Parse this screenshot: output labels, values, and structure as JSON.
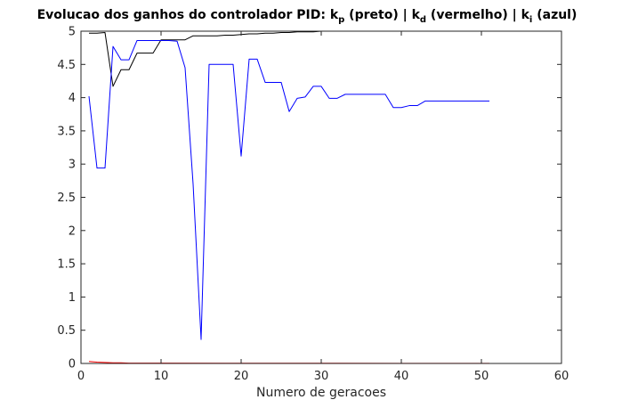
{
  "chart_data": {
    "type": "line",
    "title": {
      "prefix": "Evolucao dos ganhos do controlador PID: k",
      "kp_sub": "p",
      "kp_text": " (preto) | k",
      "kd_sub": "d",
      "kd_text": " (vermelho) | k",
      "ki_sub": "i",
      "ki_text": " (azul)"
    },
    "xlabel": "Numero de geracoes",
    "ylabel": "",
    "xlim": [
      0,
      60
    ],
    "ylim": [
      0,
      5
    ],
    "xticks": [
      0,
      10,
      20,
      30,
      40,
      50,
      60
    ],
    "yticks": [
      0,
      0.5,
      1,
      1.5,
      2,
      2.5,
      3,
      3.5,
      4,
      4.5,
      5
    ],
    "xtick_labels": [
      "0",
      "10",
      "20",
      "30",
      "40",
      "50",
      "60"
    ],
    "ytick_labels": [
      "0",
      "0.5",
      "1",
      "1.5",
      "2",
      "2.5",
      "3",
      "3.5",
      "4",
      "4.5",
      "5"
    ],
    "grid": false,
    "legend": "none",
    "series": [
      {
        "key": "kp",
        "color": "#000000",
        "points": [
          [
            1,
            4.97
          ],
          [
            2,
            4.97
          ],
          [
            3,
            4.98
          ],
          [
            4,
            4.17
          ],
          [
            5,
            4.42
          ],
          [
            6,
            4.42
          ],
          [
            7,
            4.67
          ],
          [
            8,
            4.67
          ],
          [
            9,
            4.67
          ],
          [
            10,
            4.87
          ],
          [
            11,
            4.87
          ],
          [
            12,
            4.87
          ],
          [
            13,
            4.87
          ],
          [
            14,
            4.93
          ],
          [
            15,
            4.93
          ],
          [
            16,
            4.93
          ],
          [
            17,
            4.93
          ],
          [
            18,
            4.94
          ],
          [
            19,
            4.94
          ],
          [
            20,
            4.95
          ],
          [
            21,
            4.96
          ],
          [
            22,
            4.96
          ],
          [
            23,
            4.97
          ],
          [
            24,
            4.97
          ],
          [
            25,
            4.98
          ],
          [
            26,
            4.98
          ],
          [
            27,
            4.99
          ],
          [
            28,
            4.99
          ],
          [
            29,
            4.99
          ],
          [
            30,
            5.0
          ],
          [
            35,
            5.0
          ],
          [
            40,
            5.0
          ],
          [
            45,
            5.0
          ],
          [
            51,
            5.0
          ]
        ]
      },
      {
        "key": "kd",
        "color": "#ff0000",
        "points": [
          [
            1,
            0.03
          ],
          [
            2,
            0.02
          ],
          [
            3,
            0.015
          ],
          [
            4,
            0.01
          ],
          [
            5,
            0.01
          ],
          [
            6,
            0.005
          ],
          [
            10,
            0.005
          ],
          [
            20,
            0.003
          ],
          [
            30,
            0.003
          ],
          [
            40,
            0.002
          ],
          [
            51,
            0.002
          ]
        ]
      },
      {
        "key": "ki",
        "color": "#0000ff",
        "points": [
          [
            1,
            4.02
          ],
          [
            2,
            2.94
          ],
          [
            3,
            2.94
          ],
          [
            4,
            4.77
          ],
          [
            5,
            4.57
          ],
          [
            6,
            4.57
          ],
          [
            7,
            4.86
          ],
          [
            8,
            4.86
          ],
          [
            9,
            4.86
          ],
          [
            10,
            4.86
          ],
          [
            11,
            4.86
          ],
          [
            12,
            4.85
          ],
          [
            13,
            4.45
          ],
          [
            14,
            2.7
          ],
          [
            15,
            0.36
          ],
          [
            16,
            4.5
          ],
          [
            17,
            4.5
          ],
          [
            18,
            4.5
          ],
          [
            19,
            4.5
          ],
          [
            20,
            3.12
          ],
          [
            21,
            4.58
          ],
          [
            22,
            4.58
          ],
          [
            23,
            4.23
          ],
          [
            24,
            4.23
          ],
          [
            25,
            4.23
          ],
          [
            26,
            3.79
          ],
          [
            27,
            3.99
          ],
          [
            28,
            4.01
          ],
          [
            29,
            4.17
          ],
          [
            30,
            4.17
          ],
          [
            31,
            3.99
          ],
          [
            32,
            3.99
          ],
          [
            33,
            4.05
          ],
          [
            34,
            4.05
          ],
          [
            35,
            4.05
          ],
          [
            36,
            4.05
          ],
          [
            37,
            4.05
          ],
          [
            38,
            4.05
          ],
          [
            39,
            3.85
          ],
          [
            40,
            3.85
          ],
          [
            41,
            3.88
          ],
          [
            42,
            3.88
          ],
          [
            43,
            3.95
          ],
          [
            44,
            3.95
          ],
          [
            45,
            3.95
          ],
          [
            46,
            3.95
          ],
          [
            47,
            3.95
          ],
          [
            48,
            3.95
          ],
          [
            49,
            3.95
          ],
          [
            50,
            3.95
          ],
          [
            51,
            3.95
          ]
        ]
      }
    ]
  }
}
